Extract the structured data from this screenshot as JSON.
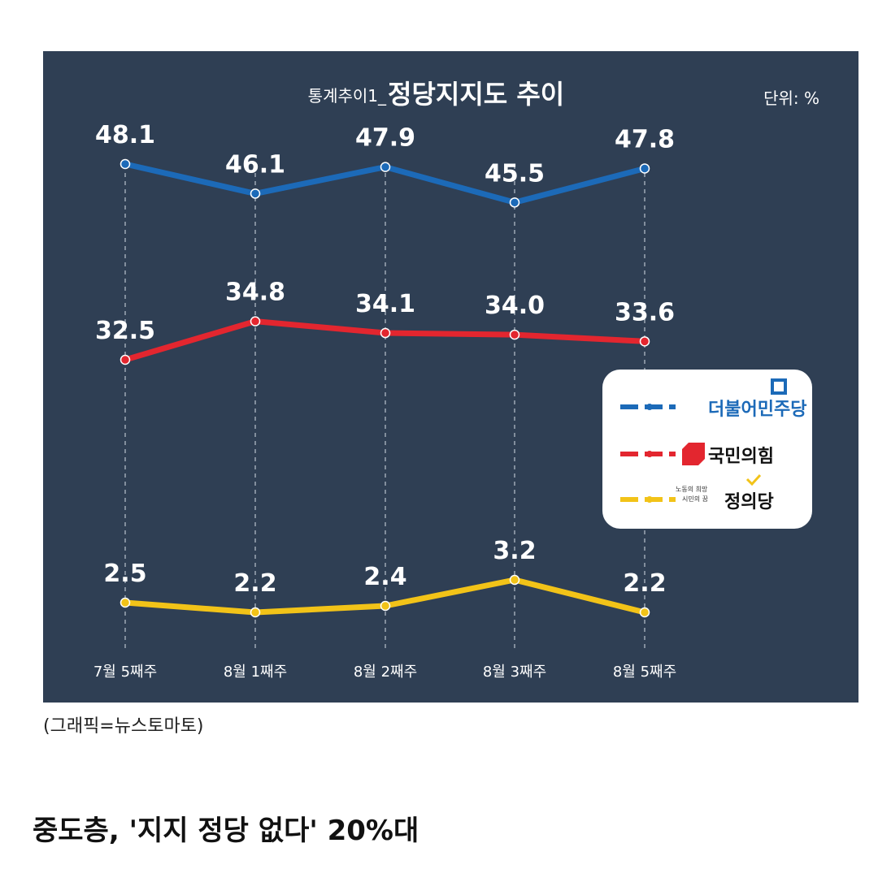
{
  "chart_data": {
    "type": "line",
    "title": "정당지지도 추이",
    "title_prefix": "통계추이1_",
    "unit": "단위: %",
    "categories": [
      "7월 5째주",
      "8월 1째주",
      "8월 2째주",
      "8월 3째주",
      "8월 5째주"
    ],
    "ylim": [
      0,
      50
    ],
    "grid": "vertical dashed",
    "legend_position": "right",
    "series": [
      {
        "name": "더불어민주당",
        "color": "#1c6ab8",
        "values": [
          48.1,
          46.1,
          47.9,
          45.5,
          47.8
        ],
        "labels": [
          "48.1",
          "46.1",
          "47.9",
          "45.5",
          "47.8"
        ]
      },
      {
        "name": "국민의힘",
        "color": "#e3262f",
        "values": [
          32.5,
          34.8,
          34.1,
          34.0,
          33.6
        ],
        "labels": [
          "32.5",
          "34.8",
          "34.1",
          "34.0",
          "33.6"
        ]
      },
      {
        "name": "정의당",
        "color": "#f2c318",
        "values": [
          2.5,
          2.2,
          2.4,
          3.2,
          2.2
        ],
        "labels": [
          "2.5",
          "2.2",
          "2.4",
          "3.2",
          "2.2"
        ]
      }
    ],
    "legend": {
      "jungui_small_line1": "노동의 희망",
      "jungui_small_line2": "시민의 꿈"
    }
  },
  "caption": "(그래픽=뉴스토마토)",
  "headline": "중도층, '지지 정당 없다' 20%대",
  "colors": {
    "panel": "#2f3f54",
    "grid": "#b9c2ce",
    "text": "#ffffff"
  }
}
